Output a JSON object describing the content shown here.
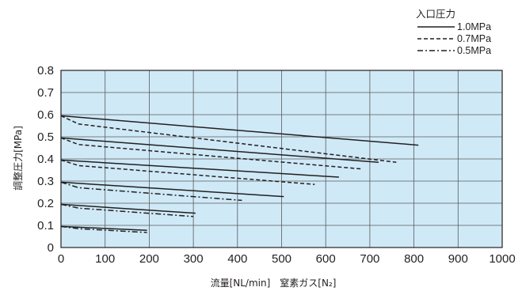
{
  "chart_data": {
    "type": "line",
    "xlabel": "流量[NL/min]　窒素ガス[N₂]",
    "ylabel": "調整圧力[MPa]",
    "xlim": [
      0,
      1000
    ],
    "ylim": [
      0,
      0.8
    ],
    "x_ticks": [
      "0",
      "100",
      "200",
      "300",
      "400",
      "500",
      "600",
      "700",
      "800",
      "900",
      "1000"
    ],
    "y_ticks": [
      "0",
      "0.1",
      "0.2",
      "0.3",
      "0.4",
      "0.5",
      "0.6",
      "0.7",
      "0.8"
    ],
    "grid": true,
    "plot_background": "#cfe9f7",
    "line_color": "#231f20",
    "legend": {
      "title": "入口圧力",
      "position": "top-right",
      "entries": [
        {
          "name": "1.0MPa",
          "style": "solid"
        },
        {
          "name": "0.7MPa",
          "style": "dashed"
        },
        {
          "name": "0.5MPa",
          "style": "dashdot"
        }
      ]
    },
    "series": [
      {
        "name": "1.0MPa",
        "set": 0.6,
        "points": [
          [
            0,
            0.595
          ],
          [
            810,
            0.462
          ]
        ]
      },
      {
        "name": "0.7MPa",
        "set": 0.6,
        "points": [
          [
            0,
            0.595
          ],
          [
            40,
            0.558
          ],
          [
            760,
            0.385
          ]
        ]
      },
      {
        "name": "1.0MPa",
        "set": 0.5,
        "points": [
          [
            0,
            0.495
          ],
          [
            720,
            0.385
          ]
        ]
      },
      {
        "name": "0.7MPa",
        "set": 0.5,
        "points": [
          [
            0,
            0.495
          ],
          [
            40,
            0.465
          ],
          [
            680,
            0.355
          ]
        ]
      },
      {
        "name": "1.0MPa",
        "set": 0.4,
        "points": [
          [
            0,
            0.395
          ],
          [
            630,
            0.318
          ]
        ]
      },
      {
        "name": "0.7MPa",
        "set": 0.4,
        "points": [
          [
            0,
            0.395
          ],
          [
            40,
            0.37
          ],
          [
            575,
            0.285
          ]
        ]
      },
      {
        "name": "1.0MPa",
        "set": 0.3,
        "points": [
          [
            0,
            0.295
          ],
          [
            505,
            0.23
          ]
        ]
      },
      {
        "name": "0.5MPa",
        "set": 0.3,
        "points": [
          [
            0,
            0.295
          ],
          [
            40,
            0.27
          ],
          [
            410,
            0.213
          ]
        ]
      },
      {
        "name": "1.0MPa",
        "set": 0.2,
        "points": [
          [
            0,
            0.195
          ],
          [
            305,
            0.155
          ]
        ]
      },
      {
        "name": "0.5MPa",
        "set": 0.2,
        "points": [
          [
            0,
            0.195
          ],
          [
            40,
            0.178
          ],
          [
            300,
            0.14
          ]
        ]
      },
      {
        "name": "1.0MPa",
        "set": 0.1,
        "points": [
          [
            0,
            0.095
          ],
          [
            195,
            0.078
          ]
        ]
      },
      {
        "name": "0.5MPa",
        "set": 0.1,
        "points": [
          [
            0,
            0.095
          ],
          [
            40,
            0.085
          ],
          [
            195,
            0.068
          ]
        ]
      }
    ]
  }
}
